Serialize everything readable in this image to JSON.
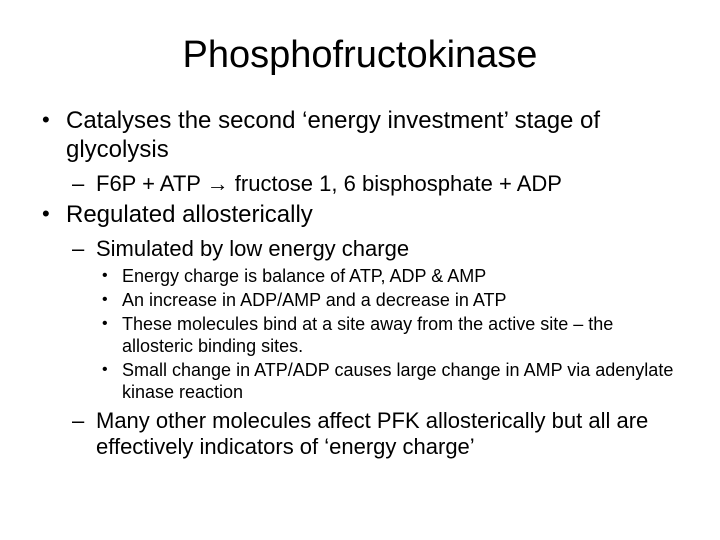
{
  "title": "Phosphofructokinase",
  "bullets": [
    {
      "text": "Catalyses the second ‘energy investment’ stage of glycolysis",
      "children": [
        {
          "text": "F6P + ATP → fructose 1, 6 bisphosphate + ADP"
        }
      ]
    },
    {
      "text": "Regulated allosterically",
      "children": [
        {
          "text": "Simulated by low energy charge",
          "children": [
            {
              "text": "Energy charge is balance of ATP, ADP & AMP"
            },
            {
              "text": "An increase in ADP/AMP and a decrease in ATP"
            },
            {
              "text": "These molecules bind at a site away from the active site – the allosteric binding sites."
            },
            {
              "text": "Small change in ATP/ADP causes large change in AMP via adenylate kinase reaction"
            }
          ]
        },
        {
          "text": "Many other molecules affect PFK allosterically but all are effectively indicators of ‘energy charge’"
        }
      ]
    }
  ],
  "colors": {
    "background": "#ffffff",
    "text": "#000000"
  },
  "font_sizes": {
    "title": 38,
    "lvl1": 24,
    "lvl2": 22,
    "lvl3": 18
  }
}
